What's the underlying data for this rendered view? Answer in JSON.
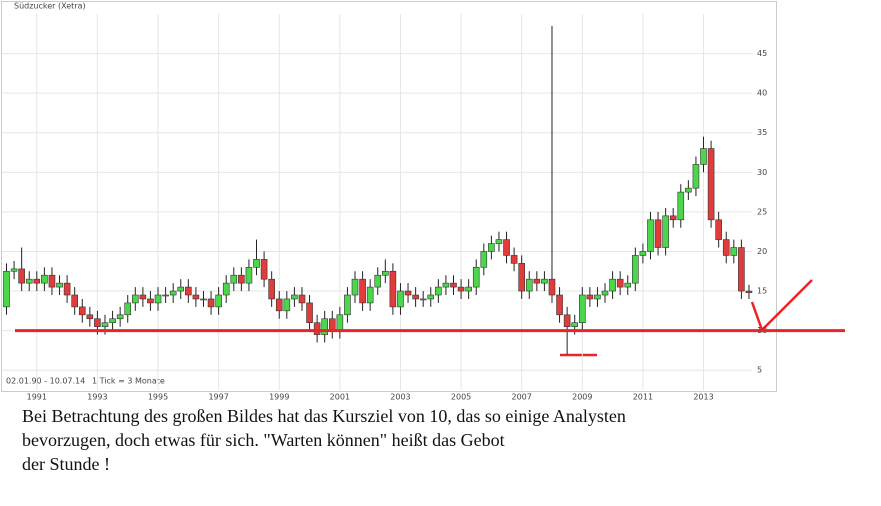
{
  "chart_data": {
    "type": "candlestick",
    "title": "Südzucker (Xetra)",
    "period": "02.01.90 - 10.07.14",
    "tick_note": "1 Tick = 3 Monate",
    "xlim": [
      1990,
      2014.6
    ],
    "xticks": [
      1991,
      1993,
      1995,
      1997,
      1999,
      2001,
      2003,
      2005,
      2007,
      2009,
      2011,
      2013
    ],
    "ylim": [
      2.5,
      50
    ],
    "yticks": [
      5,
      10,
      15,
      20,
      25,
      30,
      35,
      40,
      45
    ],
    "grid": true,
    "up_color": "#4cd64c",
    "down_color": "#e03c3c",
    "target": 10,
    "target_color": "#e8232a",
    "x": [
      1990,
      1990.25,
      1990.5,
      1990.75,
      1991,
      1991.25,
      1991.5,
      1991.75,
      1992,
      1992.25,
      1992.5,
      1992.75,
      1993,
      1993.25,
      1993.5,
      1993.75,
      1994,
      1994.25,
      1994.5,
      1994.75,
      1995,
      1995.25,
      1995.5,
      1995.75,
      1996,
      1996.25,
      1996.5,
      1996.75,
      1997,
      1997.25,
      1997.5,
      1997.75,
      1998,
      1998.25,
      1998.5,
      1998.75,
      1999,
      1999.25,
      1999.5,
      1999.75,
      2000,
      2000.25,
      2000.5,
      2000.75,
      2001,
      2001.25,
      2001.5,
      2001.75,
      2002,
      2002.25,
      2002.5,
      2002.75,
      2003,
      2003.25,
      2003.5,
      2003.75,
      2004,
      2004.25,
      2004.5,
      2004.75,
      2005,
      2005.25,
      2005.5,
      2005.75,
      2006,
      2006.25,
      2006.5,
      2006.75,
      2007,
      2007.25,
      2007.5,
      2007.75,
      2008,
      2008.25,
      2008.5,
      2008.75,
      2009,
      2009.25,
      2009.5,
      2009.75,
      2010,
      2010.25,
      2010.5,
      2010.75,
      2011,
      2011.25,
      2011.5,
      2011.75,
      2012,
      2012.25,
      2012.5,
      2012.75,
      2013,
      2013.25,
      2013.5,
      2013.75,
      2014,
      2014.25,
      2014.5
    ],
    "open": [
      13,
      17.5,
      17.8,
      16,
      16.5,
      16,
      17,
      15.5,
      16,
      14.5,
      13,
      12,
      11.5,
      10.5,
      11,
      11.5,
      12,
      13.5,
      14.5,
      14,
      13.5,
      14.5,
      14.5,
      15,
      15.5,
      14.5,
      14,
      14,
      13,
      14.5,
      16,
      17,
      16,
      18,
      19,
      16.5,
      14,
      12.5,
      14,
      14.5,
      13.5,
      11,
      9.5,
      11.5,
      10,
      12,
      14.5,
      16.5,
      13.5,
      15.5,
      17,
      17.5,
      13,
      15,
      14.5,
      14,
      14,
      14.5,
      15.5,
      16,
      15.5,
      15,
      15.5,
      18,
      20,
      21,
      21.5,
      19.5,
      18.5,
      15,
      16.5,
      16,
      16.5,
      14.5,
      12,
      10.5,
      11,
      14.5,
      14,
      14.5,
      15,
      16.5,
      15.5,
      16,
      19.5,
      20,
      24,
      20.5,
      24.5,
      24,
      27.5,
      28,
      31,
      33,
      24,
      21.5,
      19.5,
      20.5,
      15
    ],
    "high": [
      18.5,
      18.8,
      20.5,
      17.5,
      17.5,
      18,
      18,
      17,
      17,
      15.5,
      14,
      13,
      12.5,
      12,
      12.5,
      13,
      14.5,
      15.5,
      15.5,
      15,
      15.5,
      15.5,
      16,
      16.5,
      16.5,
      15.5,
      15,
      15,
      15.5,
      17,
      18,
      18,
      19,
      21.5,
      20,
      17.5,
      15,
      15,
      15.5,
      15.5,
      14.5,
      12,
      12.5,
      12.5,
      13,
      15.5,
      17.5,
      17.5,
      16.5,
      18,
      19,
      18.5,
      16,
      16,
      15.5,
      15,
      15.5,
      16.5,
      17,
      17,
      16.5,
      16.5,
      19,
      21,
      22,
      22.5,
      22.5,
      20.5,
      19.5,
      17.5,
      17.5,
      17.5,
      48.5,
      15.5,
      13,
      12,
      15.5,
      15.5,
      15.5,
      16,
      17.5,
      17.5,
      17,
      20.5,
      21,
      25,
      25,
      25.5,
      25.5,
      28.5,
      29,
      32,
      34.5,
      34,
      25,
      22.5,
      21.5,
      21.5,
      15.8
    ],
    "low": [
      12,
      16.5,
      15,
      15,
      15,
      15,
      14.5,
      14.5,
      13.5,
      12,
      11,
      10.5,
      9.5,
      9.5,
      10,
      10.5,
      11,
      12.5,
      13,
      12.5,
      12.5,
      13.5,
      13.5,
      14,
      13.5,
      13,
      13,
      12,
      12,
      13.5,
      15,
      15,
      15,
      17,
      15.5,
      13,
      11.5,
      11.5,
      13,
      12.5,
      10,
      8.5,
      8.5,
      9,
      9,
      11,
      13.5,
      12.5,
      12.5,
      14.5,
      16,
      12,
      12,
      13.5,
      13,
      13,
      13,
      13.5,
      14.5,
      14.5,
      14,
      14,
      14.5,
      17,
      19,
      20,
      18.5,
      17.5,
      14,
      14,
      15,
      15,
      13.5,
      11,
      7,
      9.5,
      10,
      13,
      13,
      13.5,
      14,
      14.5,
      14.5,
      15,
      18.5,
      19,
      19.5,
      19.5,
      23,
      23,
      26.5,
      27,
      30,
      23,
      20.5,
      18.5,
      18.5,
      14,
      14
    ],
    "close": [
      17.5,
      17.8,
      16,
      16.5,
      16,
      17,
      15.5,
      16,
      14.5,
      13,
      12,
      11.5,
      10.5,
      11,
      11.5,
      12,
      13.5,
      14.5,
      14,
      13.5,
      14.5,
      14.5,
      15,
      15.5,
      14.5,
      14,
      14,
      13,
      14.5,
      16,
      17,
      16,
      18,
      19,
      16.5,
      14,
      12.5,
      14,
      14.5,
      13.5,
      11,
      9.5,
      11.5,
      10,
      12,
      14.5,
      16.5,
      13.5,
      15.5,
      17,
      17.5,
      13,
      15,
      14.5,
      14,
      14,
      14.5,
      15.5,
      16,
      15.5,
      15,
      15.5,
      18,
      20,
      21,
      21.5,
      19.5,
      18.5,
      15,
      16.5,
      16,
      16.5,
      14.5,
      12,
      10.5,
      11,
      14.5,
      14,
      14.5,
      15,
      16.5,
      15.5,
      16,
      19.5,
      20,
      24,
      20.5,
      24.5,
      24,
      27.5,
      28,
      31,
      33,
      24,
      21.5,
      19.5,
      20.5,
      15,
      14.8
    ]
  },
  "caption": [
    "Bei Betrachtung des großen Bildes hat das Kursziel von 10, das so einige Analysten",
    "bevorzugen, doch etwas für sich. \"Warten können\" heißt das Gebot",
    "der Stunde !"
  ]
}
